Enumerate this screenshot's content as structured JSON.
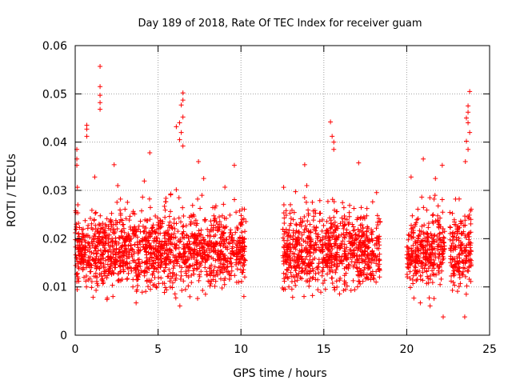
{
  "chart_data": {
    "type": "scatter",
    "title": "Day 189 of 2018, Rate Of TEC Index for receiver guam",
    "xlabel": "GPS time / hours",
    "ylabel": "ROTI / TECUs",
    "xlim": [
      0,
      25
    ],
    "ylim": [
      0,
      0.06
    ],
    "xticks": [
      "0",
      "5",
      "10",
      "15",
      "20",
      "25"
    ],
    "yticks": [
      "0",
      "0.01",
      "0.02",
      "0.03",
      "0.04",
      "0.05",
      "0.06"
    ],
    "grid": true,
    "marker": "+",
    "color": "#ff0000",
    "data_segments": [
      {
        "x_start": 0.0,
        "x_end": 10.3
      },
      {
        "x_start": 12.5,
        "x_end": 18.4
      },
      {
        "x_start": 20.0,
        "x_end": 22.3
      },
      {
        "x_start": 22.6,
        "x_end": 23.9
      }
    ],
    "outliers": [
      {
        "x": 1.5,
        "y": 0.0557
      },
      {
        "x": 1.5,
        "y": 0.0515
      },
      {
        "x": 1.5,
        "y": 0.0497
      },
      {
        "x": 1.5,
        "y": 0.0482
      },
      {
        "x": 1.5,
        "y": 0.0468
      },
      {
        "x": 0.7,
        "y": 0.0435
      },
      {
        "x": 0.7,
        "y": 0.0427
      },
      {
        "x": 0.7,
        "y": 0.0412
      },
      {
        "x": 6.5,
        "y": 0.0502
      },
      {
        "x": 6.5,
        "y": 0.0487
      },
      {
        "x": 6.4,
        "y": 0.0477
      },
      {
        "x": 6.5,
        "y": 0.0452
      },
      {
        "x": 6.3,
        "y": 0.044
      },
      {
        "x": 6.1,
        "y": 0.0432
      },
      {
        "x": 6.4,
        "y": 0.042
      },
      {
        "x": 6.3,
        "y": 0.0405
      },
      {
        "x": 6.5,
        "y": 0.0392
      },
      {
        "x": 4.5,
        "y": 0.0378
      },
      {
        "x": 15.4,
        "y": 0.0442
      },
      {
        "x": 15.5,
        "y": 0.0412
      },
      {
        "x": 15.6,
        "y": 0.04
      },
      {
        "x": 15.6,
        "y": 0.0385
      },
      {
        "x": 17.1,
        "y": 0.0357
      },
      {
        "x": 23.8,
        "y": 0.0505
      },
      {
        "x": 23.7,
        "y": 0.0475
      },
      {
        "x": 23.7,
        "y": 0.0462
      },
      {
        "x": 23.6,
        "y": 0.045
      },
      {
        "x": 23.7,
        "y": 0.044
      },
      {
        "x": 23.8,
        "y": 0.042
      },
      {
        "x": 23.6,
        "y": 0.0402
      },
      {
        "x": 23.7,
        "y": 0.0385
      },
      {
        "x": 21.0,
        "y": 0.0365
      },
      {
        "x": 0.1,
        "y": 0.0385
      },
      {
        "x": 0.1,
        "y": 0.0365
      },
      {
        "x": 0.1,
        "y": 0.0352
      },
      {
        "x": 22.2,
        "y": 0.0038
      },
      {
        "x": 23.5,
        "y": 0.0038
      }
    ]
  }
}
